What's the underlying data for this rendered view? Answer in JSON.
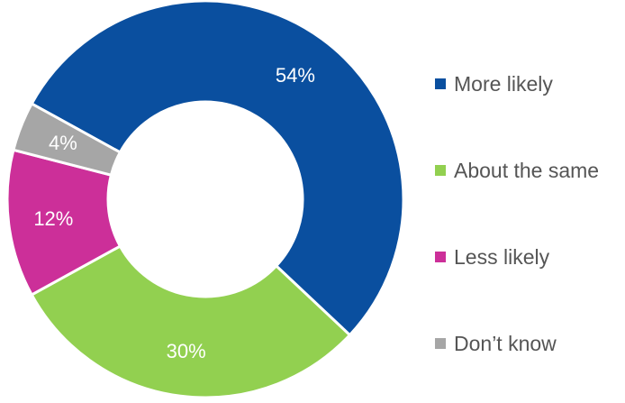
{
  "chart_data": {
    "type": "pie",
    "variant": "donut",
    "title": "",
    "categories": [
      "More likely",
      "About the same",
      "Less likely",
      "Don’t know"
    ],
    "values": [
      54,
      30,
      12,
      4
    ],
    "value_labels": [
      "54%",
      "30%",
      "12%",
      "4%"
    ],
    "colors": [
      "#0a4f9f",
      "#92d050",
      "#cc2f99",
      "#a6a6a6"
    ],
    "legend": {
      "placement": "right",
      "items": [
        "More likely",
        "About the same",
        "Less likely",
        "Don’t know"
      ]
    }
  }
}
